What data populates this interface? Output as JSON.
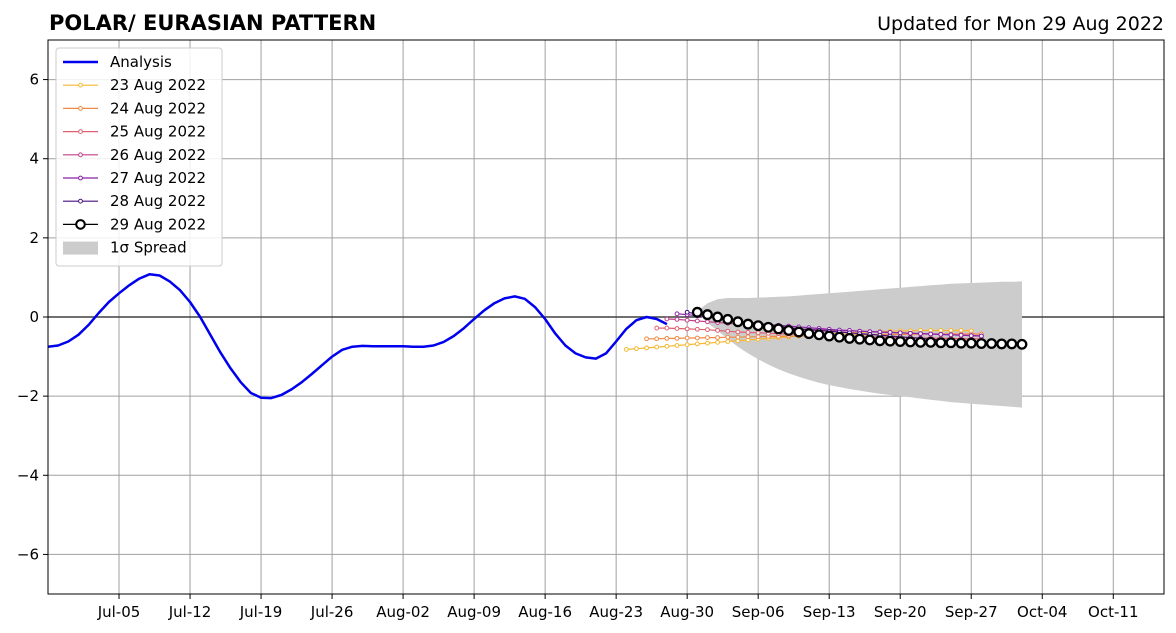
{
  "chart_data": {
    "type": "line",
    "title": "POLAR/ EURASIAN  PATTERN",
    "updated": "Updated for Mon 29 Aug 2022",
    "xlabel": "",
    "ylabel": "",
    "xlim": [
      "2022-06-28",
      "2022-10-16"
    ],
    "ylim": [
      -7,
      7
    ],
    "grid": true,
    "legend_position": "top-left",
    "x_ticks": [
      {
        "date": "2022-07-05",
        "label": "Jul-05"
      },
      {
        "date": "2022-07-12",
        "label": "Jul-12"
      },
      {
        "date": "2022-07-19",
        "label": "Jul-19"
      },
      {
        "date": "2022-07-26",
        "label": "Jul-26"
      },
      {
        "date": "2022-08-02",
        "label": "Aug-02"
      },
      {
        "date": "2022-08-09",
        "label": "Aug-09"
      },
      {
        "date": "2022-08-16",
        "label": "Aug-16"
      },
      {
        "date": "2022-08-23",
        "label": "Aug-23"
      },
      {
        "date": "2022-08-30",
        "label": "Aug-30"
      },
      {
        "date": "2022-09-06",
        "label": "Sep-06"
      },
      {
        "date": "2022-09-13",
        "label": "Sep-13"
      },
      {
        "date": "2022-09-20",
        "label": "Sep-20"
      },
      {
        "date": "2022-09-27",
        "label": "Sep-27"
      },
      {
        "date": "2022-10-04",
        "label": "Oct-04"
      },
      {
        "date": "2022-10-11",
        "label": "Oct-11"
      }
    ],
    "y_ticks": [
      {
        "value": -6,
        "label": "−6"
      },
      {
        "value": -4,
        "label": "−4"
      },
      {
        "value": -2,
        "label": "−2"
      },
      {
        "value": 0,
        "label": "0"
      },
      {
        "value": 2,
        "label": "2"
      },
      {
        "value": 4,
        "label": "4"
      },
      {
        "value": 6,
        "label": "6"
      }
    ],
    "legend": [
      {
        "label": "Analysis",
        "color": "#0000ee",
        "kind": "line"
      },
      {
        "label": "23 Aug 2022",
        "color": "#f5b830",
        "kind": "marker-line"
      },
      {
        "label": "24 Aug 2022",
        "color": "#f08a45",
        "kind": "marker-line"
      },
      {
        "label": "25 Aug 2022",
        "color": "#e06070",
        "kind": "marker-line"
      },
      {
        "label": "26 Aug 2022",
        "color": "#c0408a",
        "kind": "marker-line"
      },
      {
        "label": "27 Aug 2022",
        "color": "#8a22a8",
        "kind": "marker-line"
      },
      {
        "label": "28 Aug 2022",
        "color": "#4a0f80",
        "kind": "marker-line"
      },
      {
        "label": "29 Aug 2022",
        "color": "#000000",
        "kind": "big-marker"
      },
      {
        "label": "1σ Spread",
        "color": "#cccccc",
        "kind": "patch"
      }
    ],
    "analysis": {
      "start": "2022-06-28",
      "values": [
        -0.75,
        -0.72,
        -0.62,
        -0.45,
        -0.2,
        0.1,
        0.38,
        0.6,
        0.8,
        0.97,
        1.08,
        1.05,
        0.9,
        0.68,
        0.38,
        0.0,
        -0.45,
        -0.9,
        -1.3,
        -1.65,
        -1.92,
        -2.04,
        -2.05,
        -1.97,
        -1.83,
        -1.65,
        -1.44,
        -1.22,
        -1.0,
        -0.83,
        -0.75,
        -0.73,
        -0.74,
        -0.74,
        -0.74,
        -0.74,
        -0.75,
        -0.75,
        -0.72,
        -0.63,
        -0.48,
        -0.28,
        -0.05,
        0.17,
        0.35,
        0.47,
        0.52,
        0.46,
        0.25,
        -0.05,
        -0.42,
        -0.72,
        -0.92,
        -1.02,
        -1.05,
        -0.92,
        -0.62,
        -0.3,
        -0.08,
        0.0,
        -0.05,
        -0.18
      ]
    },
    "forecasts": [
      {
        "name": "23 Aug 2022",
        "color": "#f5b830",
        "start": "2022-08-24",
        "values": [
          -0.82,
          -0.8,
          -0.78,
          -0.76,
          -0.74,
          -0.72,
          -0.7,
          -0.68,
          -0.66,
          -0.64,
          -0.62,
          -0.6,
          -0.58,
          -0.56,
          -0.54,
          -0.52,
          -0.5,
          -0.48,
          -0.46,
          -0.44,
          -0.42,
          -0.41,
          -0.4,
          -0.39,
          -0.38,
          -0.37,
          -0.36,
          -0.35,
          -0.35,
          -0.34,
          -0.34,
          -0.34,
          -0.34,
          -0.34,
          -0.35
        ]
      },
      {
        "name": "24 Aug 2022",
        "color": "#f08a45",
        "start": "2022-08-26",
        "values": [
          -0.55,
          -0.55,
          -0.54,
          -0.54,
          -0.53,
          -0.53,
          -0.52,
          -0.52,
          -0.51,
          -0.51,
          -0.5,
          -0.5,
          -0.49,
          -0.49,
          -0.48,
          -0.48,
          -0.47,
          -0.47,
          -0.46,
          -0.46,
          -0.45,
          -0.45,
          -0.45,
          -0.44,
          -0.44,
          -0.44,
          -0.44,
          -0.43,
          -0.43,
          -0.43,
          -0.43,
          -0.43,
          -0.43,
          -0.43
        ]
      },
      {
        "name": "25 Aug 2022",
        "color": "#e06070",
        "start": "2022-08-27",
        "values": [
          -0.28,
          -0.28,
          -0.29,
          -0.3,
          -0.31,
          -0.32,
          -0.34,
          -0.36,
          -0.38,
          -0.39,
          -0.4,
          -0.41,
          -0.42,
          -0.43,
          -0.44,
          -0.45,
          -0.46,
          -0.47,
          -0.48,
          -0.49,
          -0.5,
          -0.5,
          -0.51,
          -0.51,
          -0.52,
          -0.52,
          -0.53,
          -0.53,
          -0.54,
          -0.54,
          -0.55,
          -0.55,
          -0.55
        ]
      },
      {
        "name": "26 Aug 2022",
        "color": "#c0408a",
        "start": "2022-08-28",
        "values": [
          -0.05,
          -0.06,
          -0.08,
          -0.1,
          -0.12,
          -0.14,
          -0.16,
          -0.18,
          -0.2,
          -0.22,
          -0.24,
          -0.26,
          -0.28,
          -0.3,
          -0.31,
          -0.32,
          -0.33,
          -0.34,
          -0.35,
          -0.36,
          -0.37,
          -0.38,
          -0.39,
          -0.4,
          -0.41,
          -0.42,
          -0.43,
          -0.44,
          -0.45,
          -0.46,
          -0.47,
          -0.48
        ]
      },
      {
        "name": "27 Aug 2022",
        "color": "#8a22a8",
        "start": "2022-08-29",
        "values": [
          0.08,
          0.06,
          0.03,
          0.0,
          -0.03,
          -0.07,
          -0.1,
          -0.13,
          -0.16,
          -0.19,
          -0.21,
          -0.23,
          -0.25,
          -0.27,
          -0.29,
          -0.31,
          -0.33,
          -0.34,
          -0.36,
          -0.37,
          -0.38,
          -0.39,
          -0.4,
          -0.41,
          -0.42,
          -0.43,
          -0.44,
          -0.45,
          -0.46,
          -0.47,
          -0.48
        ]
      },
      {
        "name": "28 Aug 2022",
        "color": "#4a0f80",
        "start": "2022-08-30",
        "values": [
          0.12,
          0.08,
          0.03,
          -0.02,
          -0.06,
          -0.1,
          -0.14,
          -0.18,
          -0.21,
          -0.24,
          -0.27,
          -0.3,
          -0.32,
          -0.34,
          -0.36,
          -0.38,
          -0.4,
          -0.42,
          -0.44,
          -0.46,
          -0.48,
          -0.5,
          -0.52,
          -0.54,
          -0.56,
          -0.58,
          -0.6,
          -0.62,
          -0.63,
          -0.64
        ]
      }
    ],
    "current_forecast": {
      "name": "29 Aug 2022",
      "start": "2022-08-31",
      "values": [
        0.12,
        0.06,
        0.0,
        -0.06,
        -0.12,
        -0.18,
        -0.22,
        -0.26,
        -0.3,
        -0.34,
        -0.38,
        -0.42,
        -0.45,
        -0.48,
        -0.51,
        -0.54,
        -0.56,
        -0.58,
        -0.6,
        -0.61,
        -0.62,
        -0.63,
        -0.64,
        -0.64,
        -0.65,
        -0.65,
        -0.66,
        -0.66,
        -0.67,
        -0.67,
        -0.68,
        -0.68,
        -0.69
      ]
    },
    "spread": {
      "upper": [
        0.15,
        0.35,
        0.45,
        0.48,
        0.48,
        0.48,
        0.49,
        0.5,
        0.51,
        0.52,
        0.54,
        0.56,
        0.58,
        0.6,
        0.62,
        0.64,
        0.66,
        0.68,
        0.7,
        0.72,
        0.74,
        0.76,
        0.78,
        0.8,
        0.82,
        0.84,
        0.85,
        0.86,
        0.87,
        0.88,
        0.89,
        0.89,
        0.9
      ],
      "lower": [
        0.1,
        -0.15,
        -0.35,
        -0.55,
        -0.75,
        -0.92,
        -1.07,
        -1.2,
        -1.32,
        -1.42,
        -1.51,
        -1.59,
        -1.66,
        -1.72,
        -1.77,
        -1.82,
        -1.86,
        -1.9,
        -1.94,
        -1.97,
        -2.0,
        -2.03,
        -2.06,
        -2.09,
        -2.12,
        -2.15,
        -2.17,
        -2.19,
        -2.21,
        -2.23,
        -2.25,
        -2.27,
        -2.29
      ]
    }
  }
}
